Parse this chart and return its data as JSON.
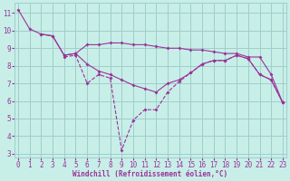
{
  "xlabel": "Windchill (Refroidissement éolien,°C)",
  "bg_color": "#c8eee8",
  "grid_color": "#9ecfca",
  "line_color": "#993399",
  "xlim": [
    -0.3,
    23.3
  ],
  "ylim": [
    2.8,
    11.6
  ],
  "yticks": [
    3,
    4,
    5,
    6,
    7,
    8,
    9,
    10,
    11
  ],
  "xticks": [
    0,
    1,
    2,
    3,
    4,
    5,
    6,
    7,
    8,
    9,
    10,
    11,
    12,
    13,
    14,
    15,
    16,
    17,
    18,
    19,
    20,
    21,
    22,
    23
  ],
  "line1_x": [
    0,
    1,
    2,
    3,
    4,
    5,
    6,
    7,
    8,
    9,
    10,
    11,
    12,
    13,
    14,
    15,
    16,
    17,
    18,
    19,
    20,
    21,
    22,
    23
  ],
  "line1_y": [
    11.2,
    10.1,
    9.8,
    9.7,
    8.6,
    8.7,
    8.1,
    7.7,
    7.5,
    7.2,
    6.9,
    6.7,
    6.5,
    7.0,
    7.2,
    7.6,
    8.1,
    8.3,
    8.3,
    8.6,
    8.4,
    7.5,
    7.2,
    5.9
  ],
  "line2_x": [
    2,
    3,
    4,
    5,
    6,
    7,
    8,
    9,
    10,
    11,
    12,
    13,
    14,
    15,
    16,
    17,
    18,
    19,
    20,
    21,
    22,
    23
  ],
  "line2_y": [
    9.8,
    9.7,
    8.6,
    8.7,
    9.2,
    9.2,
    9.3,
    9.3,
    9.2,
    9.2,
    9.1,
    9.0,
    9.0,
    8.9,
    8.9,
    8.8,
    8.7,
    8.7,
    8.5,
    8.5,
    7.5,
    5.9
  ],
  "line3_x": [
    4,
    5,
    6,
    7,
    8,
    9,
    10,
    11,
    12,
    13,
    14,
    15,
    16,
    17,
    18,
    19,
    20,
    21,
    22,
    23
  ],
  "line3_y": [
    8.5,
    8.6,
    7.0,
    7.5,
    7.3,
    3.2,
    4.9,
    5.5,
    5.5,
    6.5,
    7.1,
    7.6,
    8.1,
    8.3,
    8.3,
    8.6,
    8.4,
    7.5,
    7.2,
    5.9
  ]
}
